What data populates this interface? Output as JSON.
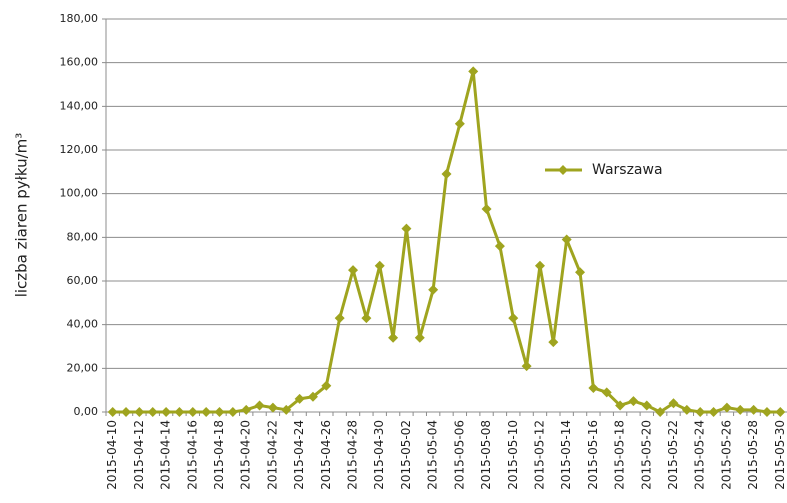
{
  "chart_data": {
    "type": "line",
    "y_label": "liczba ziaren pyłku/m³",
    "categories": [
      "2015-04-10",
      null,
      "2015-04-12",
      null,
      "2015-04-14",
      null,
      "2015-04-16",
      null,
      "2015-04-18",
      null,
      "2015-04-20",
      null,
      "2015-04-22",
      null,
      "2015-04-24",
      null,
      "2015-04-26",
      null,
      "2015-04-28",
      null,
      "2015-04-30",
      null,
      "2015-05-02",
      null,
      "2015-05-04",
      null,
      "2015-05-06",
      null,
      "2015-05-08",
      null,
      "2015-05-10",
      null,
      "2015-05-12",
      null,
      "2015-05-14",
      null,
      "2015-05-16",
      null,
      "2015-05-18",
      null,
      "2015-05-20",
      null,
      "2015-05-22",
      null,
      "2015-05-24",
      null,
      "2015-05-26",
      null,
      "2015-05-28",
      null,
      "2015-05-30"
    ],
    "series": [
      {
        "name": "Warszawa",
        "color": "#9fa41f",
        "values": [
          0,
          0,
          0,
          0,
          0,
          0,
          0,
          0,
          0,
          0,
          1,
          3,
          2,
          1,
          6,
          7,
          12,
          43,
          65,
          43,
          67,
          34,
          84,
          34,
          56,
          109,
          132,
          156,
          93,
          76,
          43,
          21,
          67,
          32,
          79,
          64,
          11,
          9,
          3,
          5,
          3,
          0,
          4,
          1,
          0,
          0,
          2,
          1,
          1,
          0,
          0
        ]
      }
    ],
    "ylim": [
      0,
      180
    ],
    "yticks": [
      {
        "value": 0,
        "label": "0,00"
      },
      {
        "value": 20,
        "label": "20,00"
      },
      {
        "value": 40,
        "label": "40,00"
      },
      {
        "value": 60,
        "label": "60,00"
      },
      {
        "value": 80,
        "label": "80,00"
      },
      {
        "value": 100,
        "label": "100,00"
      },
      {
        "value": 120,
        "label": "120,00"
      },
      {
        "value": 140,
        "label": "140,00"
      },
      {
        "value": 160,
        "label": "160,00"
      },
      {
        "value": 180,
        "label": "180,00"
      }
    ],
    "grid": true
  }
}
